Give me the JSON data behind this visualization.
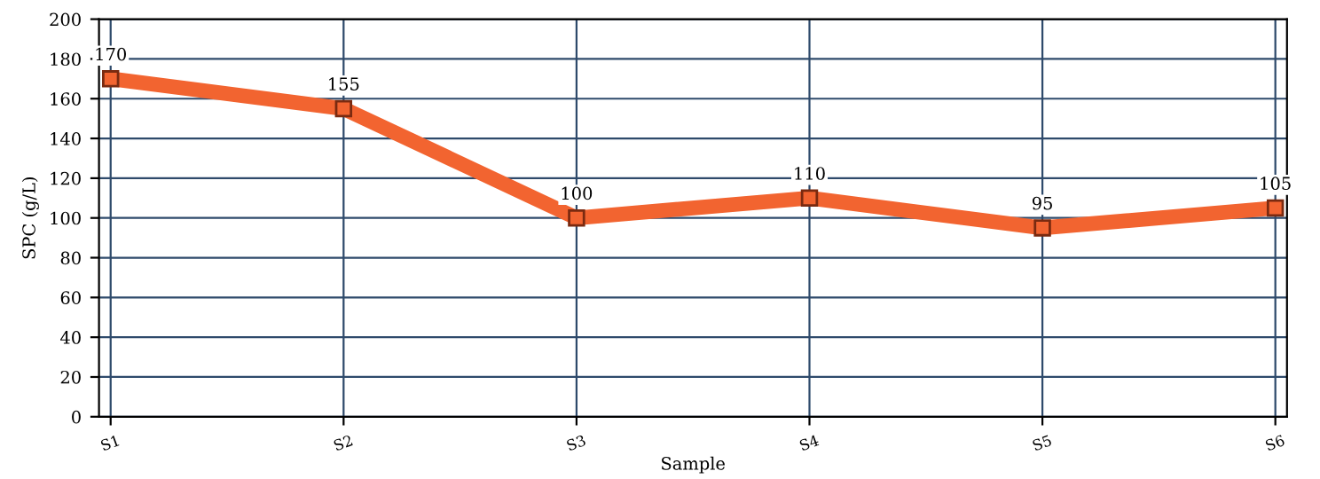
{
  "chart_data": {
    "type": "line",
    "xlabel": "Sample",
    "ylabel": "SPC (g/L)",
    "categories": [
      "S1",
      "S2",
      "S3",
      "S4",
      "S5",
      "S6"
    ],
    "series": [
      {
        "color": "#f26430",
        "values": [
          170,
          155,
          100,
          110,
          95,
          105
        ]
      }
    ],
    "ylim": [
      0,
      200
    ],
    "yticks": [
      0,
      20,
      40,
      60,
      80,
      100,
      120,
      140,
      160,
      180,
      200
    ],
    "grid": true,
    "marker": "square",
    "line_style": "solid",
    "data_labels": true
  }
}
